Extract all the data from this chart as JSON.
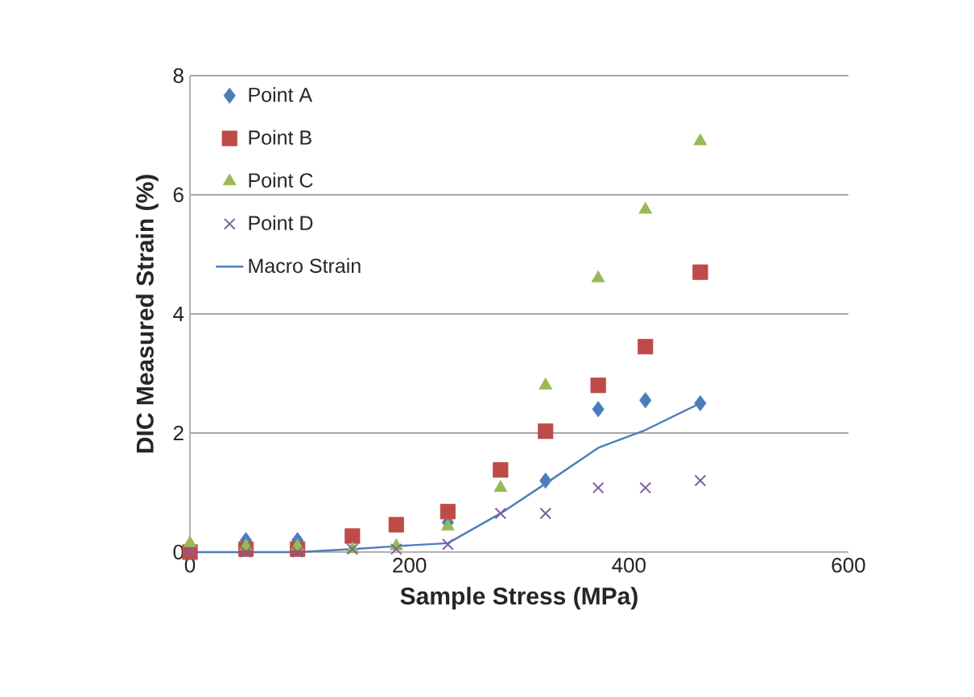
{
  "chart_data": {
    "type": "scatter",
    "xlabel": "Sample Stress (MPa)",
    "ylabel": "DIC Measured Strain (%)",
    "x": [
      0,
      51,
      98,
      148,
      188,
      235,
      283,
      324,
      372,
      415,
      465
    ],
    "series": [
      {
        "name": "Point A",
        "color": "#4a7ebb",
        "marker": "diamond",
        "values": [
          null,
          0.2,
          0.2,
          null,
          null,
          0.5,
          null,
          1.2,
          2.4,
          2.55,
          2.5
        ]
      },
      {
        "name": "Point B",
        "color": "#be4b48",
        "marker": "square",
        "values": [
          0.0,
          0.05,
          0.05,
          0.27,
          0.46,
          0.68,
          1.38,
          2.03,
          2.8,
          3.45,
          4.7
        ]
      },
      {
        "name": "Point C",
        "color": "#98b954",
        "marker": "triangle",
        "values": [
          0.15,
          0.1,
          0.1,
          0.05,
          0.1,
          0.43,
          1.08,
          2.8,
          4.6,
          5.75,
          6.9
        ]
      },
      {
        "name": "Point D",
        "color": "#7d60a0",
        "marker": "cross",
        "values": [
          0.0,
          0.0,
          0.0,
          0.05,
          0.05,
          0.13,
          0.65,
          0.65,
          1.08,
          1.08,
          1.2
        ]
      },
      {
        "name": "Macro Strain",
        "type": "line",
        "color": "#4a7ebb",
        "marker": "none",
        "values": [
          0.0,
          0.0,
          0.0,
          0.05,
          0.1,
          0.15,
          0.65,
          1.15,
          1.75,
          2.05,
          2.5
        ]
      }
    ],
    "xlim": [
      0,
      600
    ],
    "xticks": [
      0,
      200,
      400,
      600
    ],
    "ylim": [
      0,
      8
    ],
    "yticks": [
      0,
      2,
      4,
      6,
      8
    ],
    "grid": "y",
    "legend": "top left"
  }
}
